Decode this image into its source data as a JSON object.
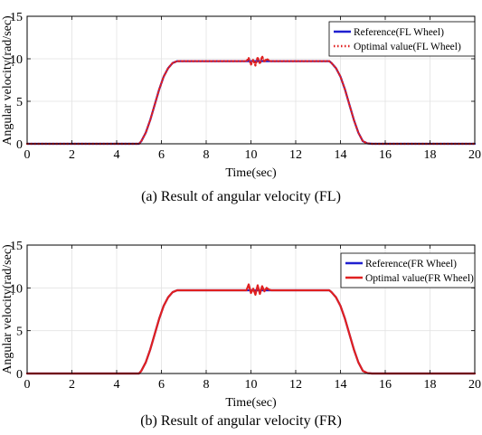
{
  "chart_data": [
    {
      "type": "line",
      "caption": "(a) Result of angular velocity (FL)",
      "xlabel": "Time(sec)",
      "ylabel": "Angular velocity(rad/sec)",
      "xlim": [
        0,
        20
      ],
      "ylim": [
        0,
        15
      ],
      "xticks": [
        "0",
        "2",
        "4",
        "6",
        "8",
        "10",
        "12",
        "14",
        "16",
        "18",
        "20"
      ],
      "yticks": [
        "0",
        "5",
        "10",
        "15"
      ],
      "grid": true,
      "legend": "top-right",
      "series": [
        {
          "name": "Reference(FL Wheel)",
          "color": "#1f1fd0",
          "style": "solid",
          "x": [
            0,
            5,
            5.1,
            5.3,
            5.5,
            5.7,
            5.9,
            6.1,
            6.3,
            6.5,
            6.7,
            7,
            13.5,
            13.6,
            13.8,
            14.0,
            14.2,
            14.4,
            14.6,
            14.8,
            15.0,
            15.2,
            15.4,
            20
          ],
          "y": [
            0,
            0,
            0.3,
            1.3,
            2.8,
            4.6,
            6.4,
            7.9,
            8.9,
            9.5,
            9.72,
            9.72,
            9.72,
            9.5,
            8.9,
            7.9,
            6.4,
            4.6,
            2.8,
            1.3,
            0.3,
            0.05,
            0,
            0
          ]
        },
        {
          "name": "Optimal value(FL Wheel)",
          "color": "#e02020",
          "style": "dotted",
          "x": [
            0,
            5,
            5.1,
            5.3,
            5.5,
            5.7,
            5.9,
            6.1,
            6.3,
            6.5,
            6.7,
            7,
            9.8,
            9.9,
            10.0,
            10.1,
            10.2,
            10.3,
            10.4,
            10.5,
            10.6,
            10.7,
            10.8,
            10.9,
            13.5,
            13.6,
            13.8,
            14.0,
            14.2,
            14.4,
            14.6,
            14.8,
            15.0,
            15.2,
            15.4,
            20
          ],
          "y": [
            0,
            0,
            0.3,
            1.3,
            2.8,
            4.6,
            6.4,
            7.9,
            8.9,
            9.5,
            9.72,
            9.72,
            9.72,
            10.1,
            9.3,
            9.9,
            9.2,
            10.2,
            9.4,
            10.3,
            9.6,
            10.0,
            9.8,
            9.72,
            9.72,
            9.5,
            8.9,
            7.9,
            6.4,
            4.6,
            2.8,
            1.3,
            0.3,
            0.05,
            0,
            0
          ]
        }
      ]
    },
    {
      "type": "line",
      "caption": "(b) Result of angular velocity (FR)",
      "xlabel": "Time(sec)",
      "ylabel": "Angular velocity(rad/sec)",
      "xlim": [
        0,
        20
      ],
      "ylim": [
        0,
        15
      ],
      "xticks": [
        "0",
        "2",
        "4",
        "6",
        "8",
        "10",
        "12",
        "14",
        "16",
        "18",
        "20"
      ],
      "yticks": [
        "0",
        "5",
        "10",
        "15"
      ],
      "grid": true,
      "legend": "top-right",
      "series": [
        {
          "name": "Reference(FR Wheel)",
          "color": "#1f1fd0",
          "style": "solid",
          "x": [
            0,
            5,
            5.1,
            5.3,
            5.5,
            5.7,
            5.9,
            6.1,
            6.3,
            6.5,
            6.7,
            7,
            13.5,
            13.6,
            13.8,
            14.0,
            14.2,
            14.4,
            14.6,
            14.8,
            15.0,
            15.2,
            15.4,
            20
          ],
          "y": [
            0,
            0,
            0.3,
            1.3,
            2.8,
            4.6,
            6.4,
            7.9,
            8.9,
            9.5,
            9.72,
            9.72,
            9.72,
            9.5,
            8.9,
            7.9,
            6.4,
            4.6,
            2.8,
            1.3,
            0.3,
            0.05,
            0,
            0
          ]
        },
        {
          "name": "Optimal value(FR Wheel)",
          "color": "#e02020",
          "style": "solid",
          "x": [
            0,
            5,
            5.1,
            5.3,
            5.5,
            5.7,
            5.9,
            6.1,
            6.3,
            6.5,
            6.7,
            7,
            9.8,
            9.9,
            10.0,
            10.1,
            10.2,
            10.3,
            10.4,
            10.5,
            10.6,
            10.7,
            10.8,
            10.9,
            13.5,
            13.6,
            13.8,
            14.0,
            14.2,
            14.4,
            14.6,
            14.8,
            15.0,
            15.2,
            15.4,
            20
          ],
          "y": [
            0,
            0,
            0.3,
            1.3,
            2.8,
            4.6,
            6.4,
            7.9,
            8.9,
            9.5,
            9.72,
            9.72,
            9.72,
            10.4,
            9.4,
            9.9,
            9.2,
            10.3,
            9.3,
            10.2,
            9.6,
            10.0,
            9.8,
            9.72,
            9.72,
            9.5,
            8.9,
            7.9,
            6.4,
            4.6,
            2.8,
            1.3,
            0.3,
            0.05,
            0,
            0
          ]
        }
      ]
    }
  ]
}
